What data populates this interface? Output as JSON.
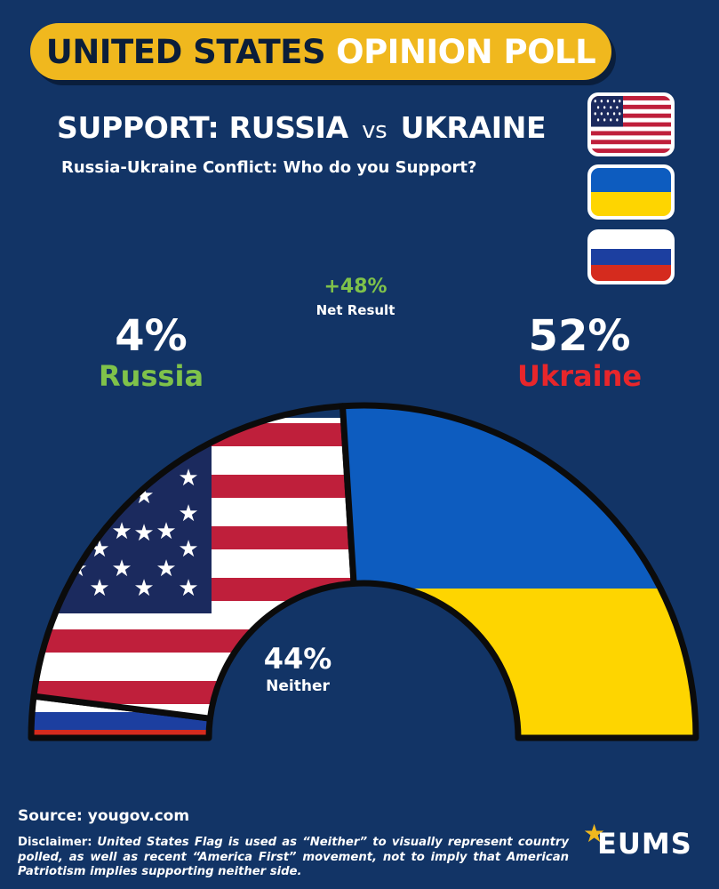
{
  "header": {
    "banner_part1": "UNITED STATES",
    "banner_part2": "OPINION POLL",
    "title_left": "SUPPORT: RUSSIA",
    "title_vs": "vs",
    "title_right": "UKRAINE",
    "subtitle": "Russia-Ukraine Conflict: Who do you Support?"
  },
  "flags": {
    "us": "us-flag-icon",
    "ukraine": "ukraine-flag-icon",
    "russia": "russia-flag-icon"
  },
  "net": {
    "value": "+48%",
    "label": "Net Result"
  },
  "labels": {
    "russia_pct": "4%",
    "russia_name": "Russia",
    "ukraine_pct": "52%",
    "ukraine_name": "Ukraine",
    "neither_pct": "44%",
    "neither_name": "Neither"
  },
  "colors": {
    "background": "#123466",
    "banner": "#f0b81e",
    "russia_label": "#7fc24a",
    "ukraine_label": "#e8262b",
    "ukraine_blue": "#0d5cbf",
    "ukraine_yellow": "#fed500",
    "us_red": "#bf1f3b",
    "us_blue": "#1b2a5e",
    "ru_blue": "#1c3fa0",
    "ru_red": "#d52b1e"
  },
  "chart_data": {
    "type": "semicircle-donut",
    "title": "SUPPORT: RUSSIA vs UKRAINE",
    "categories": [
      "Russia",
      "Neither",
      "Ukraine"
    ],
    "values": [
      4,
      44,
      52
    ],
    "unit": "%",
    "net_result": 48
  },
  "footer": {
    "source": "Source: yougov.com",
    "disclaimer_label": "Disclaimer:",
    "disclaimer_text_1": "United States Flag is used as “Neither” to visually represent country polled, as well as recent “America First” movement, not to imply that American Patriotism implies supporting neither side.",
    "logo_star": "★",
    "logo_text": "EUMS"
  }
}
